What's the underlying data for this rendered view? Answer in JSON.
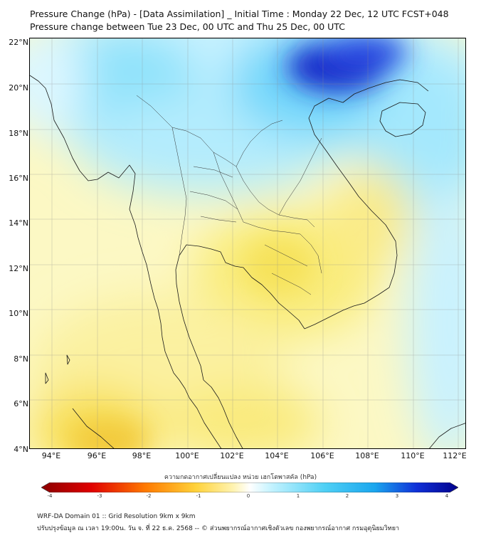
{
  "header": {
    "title_line1": "Pressure Change (hPa) - [Data Assimilation] _ Initial Time : Monday 22 Dec, 12 UTC FCST+048",
    "title_line2": "Pressure change between Tue 23 Dec, 00 UTC and Thu 25 Dec, 00 UTC"
  },
  "map": {
    "lat_labels": [
      "22°N",
      "20°N",
      "18°N",
      "16°N",
      "14°N",
      "12°N",
      "10°N",
      "8°N",
      "6°N",
      "4°N"
    ],
    "lon_labels": [
      "94°E",
      "96°E",
      "98°E",
      "100°E",
      "102°E",
      "104°E",
      "106°E",
      "108°E",
      "110°E",
      "112°E"
    ],
    "lat_range": [
      4,
      22
    ],
    "lon_range": [
      93,
      112.5
    ],
    "gridlines": true,
    "colormap_colors": {
      "strong_negative": "#8b0000",
      "negative": "#ff6a00",
      "weak_negative": "#ffe066",
      "neutral": "#ffffff",
      "weak_positive": "#a8ecff",
      "positive": "#2ec0f0",
      "strong_positive": "#00008b"
    }
  },
  "colorbar": {
    "title": "ความกดอากาศเปลี่ยนแปลง หน่วย เฮกโตพาสคัล (hPa)",
    "ticks": [
      "-4",
      "-3",
      "-2",
      "-1",
      "0",
      "1",
      "2",
      "3",
      "4"
    ],
    "range": [
      -4,
      4
    ]
  },
  "footer": {
    "line1": "WRF-DA Domain 01 :: Grid Resolution 9km x 9km",
    "line2": "ปรับปรุงข้อมูล ณ เวลา 19:00น. วัน จ. ที่ 22 ธ.ค. 2568 -- © ส่วนพยากรณ์อากาศเชิงตัวเลข กองพยากรณ์อากาศ กรมอุตุนิยมวิทยา"
  }
}
